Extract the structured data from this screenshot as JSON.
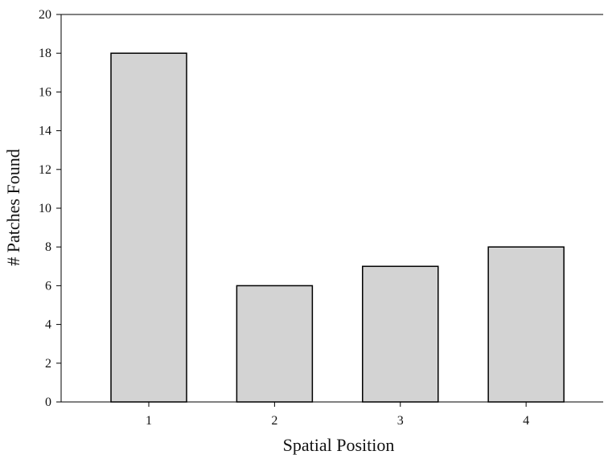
{
  "chart_data": {
    "type": "bar",
    "categories": [
      "1",
      "2",
      "3",
      "4"
    ],
    "values": [
      18,
      6,
      7,
      8
    ],
    "xlabel": "Spatial Position",
    "ylabel": "# Patches Found",
    "ylim": [
      0,
      20
    ],
    "yticks": [
      "0",
      "2",
      "4",
      "6",
      "8",
      "10",
      "12",
      "14",
      "16",
      "18",
      "20"
    ],
    "grid": false,
    "legend": "none",
    "colors": {
      "bar_fill": "#d3d3d3",
      "bar_stroke": "#000000",
      "axis": "#000000"
    }
  }
}
